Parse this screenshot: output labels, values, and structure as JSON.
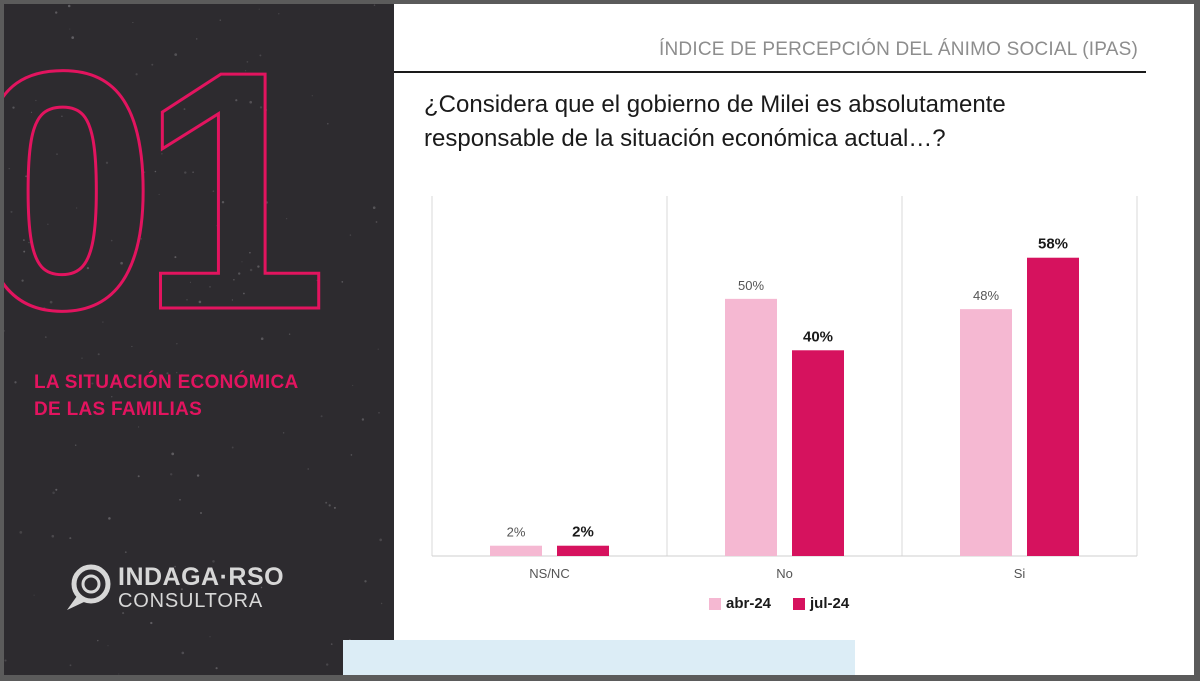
{
  "header": {
    "title": "ÍNDICE DE PERCEPCIÓN DEL ÁNIMO SOCIAL (IPAS)"
  },
  "sidebar": {
    "section_number": "01",
    "section_title_line1": "LA SITUACIÓN ECONÓMICA",
    "section_title_line2": "DE LAS FAMILIAS",
    "logo_name": "INDAGA·RSO",
    "logo_subtitle": "CONSULTORA"
  },
  "question": {
    "line1": "¿Considera que el gobierno de Milei es absolutamente",
    "line2": "responsable de la situación económica actual…?"
  },
  "colors": {
    "accent": "#e2145f",
    "abr": "#f5b8d2",
    "jul": "#d6125e",
    "panel": "#2d2b2f"
  },
  "chart_data": {
    "type": "bar",
    "categories": [
      "NS/NC",
      "No",
      "Si"
    ],
    "series": [
      {
        "name": "abr-24",
        "values": [
          2,
          50,
          48
        ],
        "labels": [
          "2%",
          "50%",
          "48%"
        ]
      },
      {
        "name": "jul-24",
        "values": [
          2,
          40,
          58
        ],
        "labels": [
          "2%",
          "40%",
          "58%"
        ]
      }
    ],
    "ylim": [
      0,
      70
    ],
    "title": "",
    "xlabel": "",
    "ylabel": "",
    "legend": "bottom-center"
  }
}
